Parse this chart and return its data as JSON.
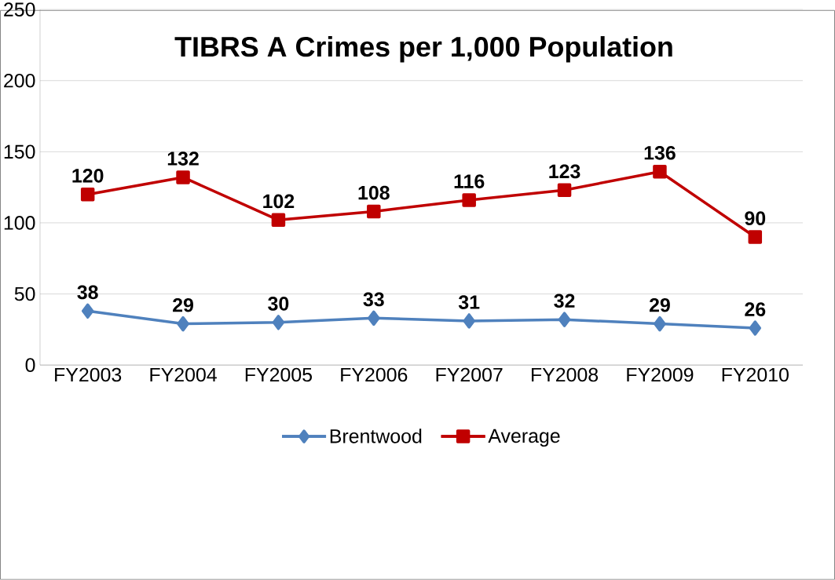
{
  "chart_data": {
    "type": "line",
    "title": "TIBRS A Crimes per 1,000 Population",
    "categories": [
      "FY2003",
      "FY2004",
      "FY2005",
      "FY2006",
      "FY2007",
      "FY2008",
      "FY2009",
      "FY2010"
    ],
    "series": [
      {
        "name": "Brentwood",
        "color": "#4f81bd",
        "marker": "diamond",
        "values": [
          38,
          29,
          30,
          33,
          31,
          32,
          29,
          26
        ]
      },
      {
        "name": "Average",
        "color": "#c00000",
        "marker": "square",
        "values": [
          120,
          132,
          102,
          108,
          116,
          123,
          136,
          90
        ]
      }
    ],
    "ylim": [
      0,
      250
    ],
    "yticks": [
      0,
      50,
      100,
      150,
      200,
      250
    ],
    "grid": "y",
    "legend": "bottom",
    "data_labels": true
  }
}
